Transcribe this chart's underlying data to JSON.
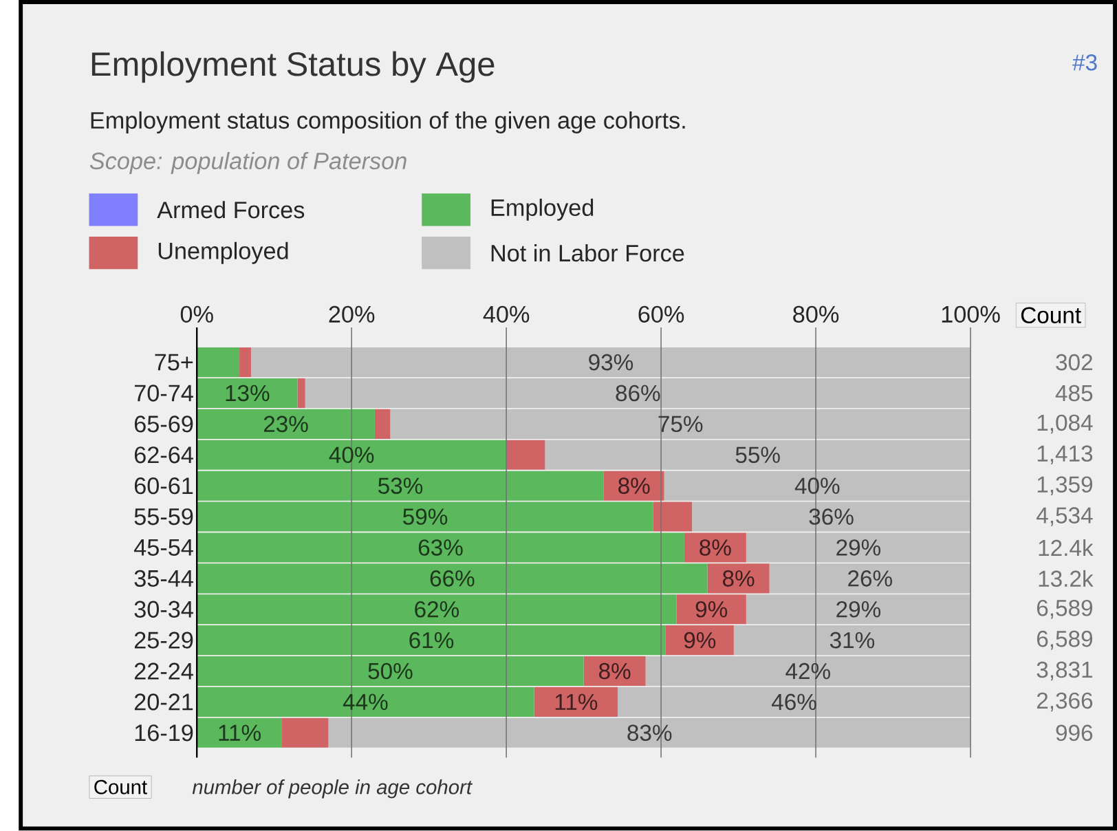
{
  "chart_data": {
    "type": "bar",
    "orientation": "horizontal",
    "stacked": true,
    "title": "Employment Status by Age",
    "subtitle": "Employment status composition of the given age cohorts.",
    "categories": [
      "75+",
      "70-74",
      "65-69",
      "62-64",
      "60-61",
      "55-59",
      "45-54",
      "35-44",
      "30-34",
      "25-29",
      "22-24",
      "20-21",
      "16-19"
    ],
    "series": [
      {
        "name": "Armed Forces",
        "color": "#8080ff",
        "values": [
          0,
          0,
          0,
          0,
          0,
          0,
          0,
          0,
          0,
          0,
          0,
          0,
          0
        ]
      },
      {
        "name": "Employed",
        "color": "#5cb85c",
        "values": [
          5.5,
          13,
          23,
          40,
          52.6,
          59,
          63,
          66,
          62,
          60.6,
          50,
          43.6,
          11
        ],
        "value_labels": [
          null,
          "13%",
          "23%",
          "40%",
          "53%",
          "59%",
          "63%",
          "66%",
          "62%",
          "61%",
          "50%",
          "44%",
          "11%"
        ]
      },
      {
        "name": "Unemployed",
        "color": "#d06464",
        "values": [
          1.5,
          1,
          2,
          5,
          7.8,
          5,
          8,
          8,
          9,
          8.8,
          8,
          10.8,
          6
        ],
        "value_labels": [
          null,
          null,
          null,
          null,
          "8%",
          null,
          "8%",
          "8%",
          "9%",
          "9%",
          "8%",
          "11%",
          null
        ]
      },
      {
        "name": "Not in Labor Force",
        "color": "#c0c0c0",
        "values": [
          93,
          86,
          75,
          55,
          39.6,
          36,
          29,
          26,
          29,
          30.6,
          42,
          45.6,
          83
        ],
        "value_labels": [
          "93%",
          "86%",
          "75%",
          "55%",
          "40%",
          "36%",
          "29%",
          "26%",
          "29%",
          "31%",
          "42%",
          "46%",
          "83%"
        ]
      }
    ],
    "xlim": [
      0,
      100
    ],
    "xticks": [
      {
        "value": 0,
        "label": "0%"
      },
      {
        "value": 20,
        "label": "20%"
      },
      {
        "value": 40,
        "label": "40%"
      },
      {
        "value": 60,
        "label": "60%"
      },
      {
        "value": 80,
        "label": "80%"
      },
      {
        "value": 100,
        "label": "100%"
      }
    ],
    "grid": "x",
    "legend": "top",
    "annotations": [
      "#3",
      "Scope: population of Paterson",
      "Count",
      "Count",
      "number of people in age cohort",
      "302",
      "485",
      "1,084",
      "1,413",
      "1,359",
      "4,534",
      "12.4k",
      "13.2k",
      "6,589",
      "6,589",
      "3,831",
      "2,366",
      "996"
    ]
  }
}
